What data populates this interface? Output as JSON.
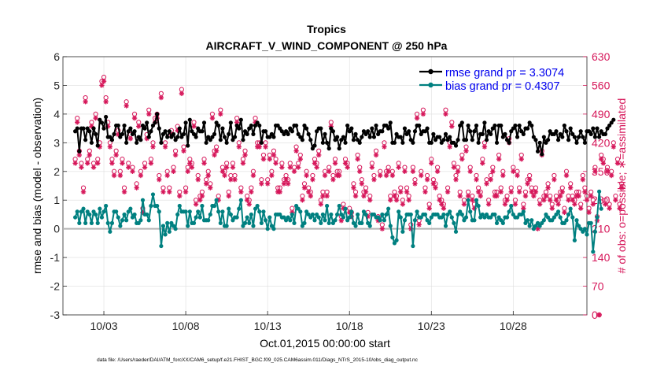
{
  "chart_data": {
    "type": "line",
    "title": "Tropics",
    "subtitle": "AIRCRAFT_V_WIND_COMPONENT @ 250 hPa",
    "xlabel": "Oct.01,2015 00:00:00 start",
    "ylabel": "rmse and bias (model - observation)",
    "y2label": "# of obs: o=possible; ∗=assimilated",
    "footnote": "data file: /Users/raeder/DAI/ATM_forcXX/CAM6_setup/f.e21.FHIST_BGC.f09_025.CAM6assim.011/Diags_NTrS_2015-10/obs_diag_output.nc",
    "xlim": [
      0.5,
      32.5
    ],
    "ylim": [
      -3,
      6
    ],
    "y2lim": [
      0,
      630
    ],
    "xticks": [
      3,
      8,
      13,
      18,
      23,
      28
    ],
    "xticklabels": [
      "10/03",
      "10/08",
      "10/13",
      "10/18",
      "10/23",
      "10/28"
    ],
    "yticks": [
      -3,
      -2,
      -1,
      0,
      1,
      2,
      3,
      4,
      5,
      6
    ],
    "yticklabels": [
      "-3",
      "-2",
      "-1",
      "0",
      "1",
      "2",
      "3",
      "4",
      "5",
      "6"
    ],
    "y2ticks": [
      0,
      70,
      140,
      210,
      280,
      350,
      420,
      490,
      560,
      630
    ],
    "y2ticklabels": [
      "0",
      "70",
      "140",
      "210",
      "280",
      "350",
      "420",
      "490",
      "560",
      "630"
    ],
    "grid": true,
    "legend_position": "top-right",
    "colors": {
      "rmse": "#000000",
      "bias": "#008080",
      "obs": "#d6175a",
      "zero_line": "#b4b4b4"
    },
    "series": [
      {
        "name": "rmse grand pr = 3.3074",
        "axis": "left",
        "values": [
          3.4,
          3.5,
          2.7,
          3.5,
          3.5,
          3.1,
          3.5,
          3.4,
          3.0,
          3.5,
          3.3,
          2.9,
          3.8,
          3.7,
          3.5,
          3.9,
          3.2,
          3.2,
          3.1,
          3.3,
          3.6,
          3.6,
          3.2,
          3.3,
          3.6,
          3.0,
          3.4,
          3.5,
          3.3,
          3.4,
          3.0,
          3.2,
          3.1,
          3.6,
          3.5,
          3.7,
          3.2,
          3.4,
          3.6,
          3.7,
          4.0,
          3.5,
          3.0,
          3.3,
          3.4,
          3.2,
          3.4,
          3.2,
          3.3,
          3.1,
          3.2,
          3.5,
          3.2,
          3.3,
          3.7,
          2.9,
          3.8,
          3.4,
          3.3,
          3.2,
          3.5,
          3.4,
          3.4,
          3.7,
          3.0,
          3.2,
          3.1,
          3.2,
          3.3,
          3.7,
          3.6,
          3.1,
          3.5,
          3.2,
          3.0,
          3.3,
          3.7,
          3.1,
          3.2,
          3.6,
          3.5,
          3.8,
          3.1,
          3.4,
          3.3,
          3.5,
          3.6,
          3.3,
          3.6,
          3.7,
          3.6,
          3.0,
          3.4,
          3.4,
          3.2,
          3.2,
          3.3,
          3.2,
          3.6,
          3.6,
          3.5,
          3.4,
          3.3,
          3.4,
          3.3,
          3.5,
          3.4,
          3.6,
          3.6,
          3.3,
          3.2,
          3.1,
          3.6,
          3.5,
          3.3,
          3.1,
          2.8,
          2.9,
          3.4,
          3.5,
          3.5,
          3.0,
          3.3,
          3.0,
          2.8,
          3.5,
          3.4,
          3.1,
          3.2,
          2.8,
          3.1,
          3.2,
          3.0,
          3.6,
          3.4,
          3.5,
          3.1,
          3.3,
          3.1,
          3.0,
          3.2,
          3.4,
          3.3,
          3.4,
          3.2,
          3.5,
          3.2,
          3.6,
          3.3,
          3.4,
          3.4,
          3.6,
          3.6,
          3.5,
          3.7,
          3.0,
          3.0,
          3.3,
          3.2,
          3.2,
          3.0,
          3.5,
          3.3,
          3.4,
          3.1,
          3.0,
          3.4,
          3.6,
          3.6,
          3.3,
          3.4,
          3.4,
          3.5,
          3.0,
          3.0,
          3.3,
          3.1,
          3.2,
          3.2,
          3.0,
          3.1,
          3.3,
          3.1,
          3.2,
          3.0,
          3.0,
          2.9,
          3.1,
          3.6,
          3.7,
          3.1,
          3.1,
          3.6,
          3.4,
          3.1,
          3.4,
          3.6,
          3.0,
          3.3,
          3.3,
          3.7,
          3.1,
          3.4,
          3.3,
          3.5,
          3.6,
          3.0,
          3.6,
          3.6,
          3.2,
          3.3,
          3.1,
          3.0,
          3.4,
          3.5,
          3.6,
          3.2,
          3.6,
          3.4,
          3.3,
          3.5,
          3.5,
          3.7,
          3.6,
          3.2,
          3.1,
          2.7,
          3.0,
          2.6,
          3.2,
          3.0,
          3.1,
          3.4,
          3.3,
          3.3,
          3.4,
          3.1,
          3.3,
          3.2,
          3.6,
          3.4,
          3.1,
          3.5,
          3.3,
          3.2,
          3.0,
          3.2,
          3.4,
          3.2,
          3.0,
          3.4,
          3.4,
          3.3,
          3.5,
          3.2,
          3.5,
          3.2,
          3.4,
          3.3,
          3.3,
          3.5,
          3.6,
          3.7,
          3.8
        ]
      },
      {
        "name": "bias grand pr = 0.4307",
        "axis": "left",
        "values": [
          0.4,
          0.6,
          0.2,
          0.6,
          0.7,
          0.2,
          0.6,
          0.5,
          0.2,
          0.6,
          0.5,
          0.2,
          0.7,
          0.4,
          0.6,
          0.8,
          0.2,
          -0.1,
          0.2,
          0.6,
          0.6,
          0.4,
          0.1,
          0.3,
          0.5,
          0.3,
          0.6,
          0.7,
          0.4,
          0.5,
          0.2,
          0.2,
          0.3,
          1.0,
          0.5,
          0.5,
          0.3,
          0.8,
          1.2,
          0.8,
          0.8,
          0.6,
          -0.6,
          0.1,
          -0.2,
          0.2,
          -0.1,
          0.2,
          0.1,
          0.0,
          0.5,
          0.8,
          0.6,
          0.6,
          0.6,
          0.1,
          0.6,
          0.2,
          0.2,
          0.4,
          0.6,
          0.4,
          0.8,
          0.3,
          0.3,
          0.3,
          0.5,
          0.8,
          0.8,
          1.0,
          0.6,
          0.2,
          0.6,
          0.1,
          0.1,
          0.7,
          0.5,
          0.3,
          0.4,
          0.4,
          0.7,
          1.0,
          0.1,
          0.2,
          0.4,
          0.2,
          0.5,
          0.1,
          0.7,
          0.8,
          0.6,
          0.2,
          0.6,
          0.3,
          0.0,
          0.4,
          0.1,
          0.0,
          0.5,
          0.5,
          0.5,
          0.4,
          0.4,
          0.3,
          0.4,
          0.3,
          0.5,
          0.2,
          0.8,
          0.7,
          0.6,
          0.1,
          0.2,
          0.6,
          0.5,
          0.4,
          0.5,
          0.3,
          0.5,
          0.4,
          0.2,
          0.5,
          0.3,
          0.8,
          0.2,
          0.5,
          0.2,
          0.3,
          0.5,
          0.8,
          0.5,
          0.4,
          0.7,
          0.3,
          0.4,
          0.6,
          0.2,
          0.1,
          0.5,
          0.2,
          0.2,
          0.6,
          0.5,
          0.2,
          0.1,
          0.5,
          0.5,
          0.4,
          0.4,
          0.3,
          0.5,
          0.3,
          0.5,
          0.7,
          0.1,
          -0.3,
          -0.5,
          -0.4,
          0.6,
          0.4,
          -0.1,
          0.3,
          0.5,
          0.5,
          0.5,
          -0.6,
          0.3,
          0.6,
          0.4,
          0.4,
          0.5,
          0.5,
          0.3,
          0.2,
          0.4,
          0.5,
          0.5,
          0.5,
          0.4,
          0.4,
          0.5,
          0.1,
          0.5,
          0.6,
          0.4,
          0.2,
          -0.1,
          0.5,
          0.6,
          0.5,
          0.3,
          0.4,
          1.0,
          0.6,
          0.3,
          0.3,
          1.0,
          0.8,
          0.4,
          0.5,
          0.4,
          0.5,
          0.4,
          0.4,
          0.5,
          0.5,
          0.2,
          0.4,
          0.3,
          0.2,
          0.4,
          0.4,
          0.6,
          0.8,
          0.5,
          0.4,
          0.4,
          0.5,
          0.5,
          0.6,
          0.2,
          0.3,
          0.1,
          0.3,
          0.0,
          0.1,
          0.2,
          0.1,
          0.2,
          0.3,
          0.5,
          0.4,
          0.3,
          0.3,
          0.4,
          0.5,
          0.6,
          0.4,
          0.2,
          0.2,
          0.3,
          0.5,
          0.7,
          0.4,
          -0.4,
          0.3,
          0.1,
          0.0,
          -0.1,
          0.0,
          -0.2,
          0.2,
          0.2,
          -0.8,
          -0.1,
          0.4,
          1.3,
          0.7
        ]
      }
    ],
    "obs_counts": {
      "name": "# of obs",
      "axis": "right",
      "possible": [
        380,
        480,
        400,
        370,
        310,
        530,
        380,
        400,
        470,
        370,
        490,
        380,
        420,
        570,
        580,
        530,
        470,
        420,
        380,
        350,
        400,
        450,
        350,
        380,
        310,
        520,
        370,
        440,
        360,
        490,
        320,
        470,
        350,
        260,
        370,
        440,
        500,
        380,
        420,
        480,
        490,
        340,
        540,
        310,
        420,
        350,
        310,
        450,
        360,
        400,
        460,
        300,
        550,
        410,
        310,
        360,
        380,
        370,
        470,
        280,
        340,
        290,
        300,
        380,
        330,
        350,
        320,
        490,
        400,
        410,
        290,
        500,
        360,
        350,
        370,
        300,
        340,
        370,
        340,
        480,
        420,
        310,
        380,
        400,
        290,
        280,
        310,
        350,
        480,
        420,
        420,
        330,
        390,
        420,
        330,
        390,
        350,
        400,
        380,
        310,
        310,
        370,
        330,
        340,
        330,
        370,
        260,
        360,
        410,
        370,
        390,
        290,
        320,
        350,
        310,
        300,
        340,
        380,
        370,
        400,
        280,
        300,
        350,
        300,
        360,
        470,
        340,
        380,
        350,
        350,
        240,
        270,
        380,
        370,
        260,
        250,
        320,
        300,
        390,
        360,
        330,
        300,
        310,
        250,
        290,
        370,
        340,
        400,
        240,
        350,
        220,
        420,
        350,
        360,
        290,
        350,
        300,
        290,
        370,
        310,
        280,
        360,
        310,
        290,
        220,
        360,
        330,
        490,
        230,
        350,
        500,
        310,
        340,
        270,
        380,
        330,
        320,
        360,
        290,
        280,
        270,
        500,
        310,
        420,
        470,
        370,
        340,
        360,
        300,
        390,
        280,
        410,
        300,
        360,
        290,
        270,
        340,
        310,
        300,
        380,
        420,
        330,
        280,
        340,
        360,
        300,
        300,
        390,
        310,
        350,
        280,
        290,
        430,
        310,
        360,
        280,
        350,
        310,
        390,
        270,
        300,
        330,
        340,
        310,
        300,
        310,
        220,
        280,
        400,
        290,
        300,
        320,
        290,
        270,
        340,
        290,
        280,
        300,
        310,
        260,
        350,
        290,
        320,
        290,
        280,
        300,
        300,
        270,
        340,
        310,
        290,
        260,
        300,
        280,
        360,
        240,
        0,
        390,
        380,
        280,
        360,
        270,
        350,
        420,
        290,
        380,
        270,
        320
      ],
      "assimilated": [
        370,
        470,
        390,
        360,
        300,
        520,
        370,
        390,
        460,
        360,
        480,
        370,
        410,
        560,
        570,
        520,
        460,
        410,
        370,
        340,
        390,
        440,
        340,
        370,
        300,
        510,
        360,
        430,
        350,
        480,
        310,
        460,
        340,
        250,
        360,
        430,
        490,
        370,
        410,
        470,
        480,
        330,
        530,
        300,
        410,
        340,
        300,
        440,
        350,
        390,
        450,
        290,
        540,
        400,
        300,
        350,
        370,
        360,
        460,
        270,
        330,
        280,
        290,
        370,
        320,
        340,
        310,
        480,
        390,
        400,
        280,
        490,
        350,
        340,
        360,
        290,
        330,
        360,
        330,
        470,
        410,
        300,
        370,
        390,
        280,
        270,
        300,
        340,
        470,
        410,
        410,
        320,
        380,
        410,
        320,
        380,
        340,
        390,
        370,
        300,
        300,
        360,
        320,
        330,
        320,
        360,
        250,
        350,
        400,
        360,
        380,
        280,
        310,
        340,
        300,
        290,
        330,
        370,
        360,
        390,
        270,
        290,
        340,
        290,
        350,
        460,
        330,
        370,
        340,
        340,
        230,
        260,
        370,
        360,
        250,
        240,
        310,
        290,
        380,
        350,
        320,
        290,
        300,
        240,
        280,
        360,
        330,
        390,
        230,
        340,
        210,
        410,
        340,
        350,
        280,
        340,
        290,
        280,
        360,
        300,
        270,
        350,
        300,
        280,
        210,
        350,
        320,
        480,
        220,
        340,
        490,
        300,
        330,
        260,
        370,
        320,
        310,
        350,
        280,
        270,
        260,
        490,
        300,
        410,
        460,
        360,
        330,
        350,
        290,
        380,
        270,
        400,
        290,
        350,
        280,
        260,
        330,
        300,
        290,
        370,
        410,
        320,
        270,
        330,
        350,
        290,
        290,
        380,
        300,
        340,
        270,
        280,
        420,
        300,
        350,
        270,
        340,
        300,
        380,
        260,
        290,
        320,
        330,
        300,
        290,
        300,
        210,
        270,
        390,
        280,
        290,
        310,
        280,
        260,
        330,
        280,
        270,
        290,
        300,
        250,
        340,
        280,
        310,
        280,
        270,
        290,
        290,
        260,
        330,
        300,
        280,
        250,
        290,
        270,
        350,
        230,
        0,
        380,
        370,
        270,
        350,
        260,
        340,
        410,
        280,
        370,
        260,
        310
      ]
    }
  }
}
